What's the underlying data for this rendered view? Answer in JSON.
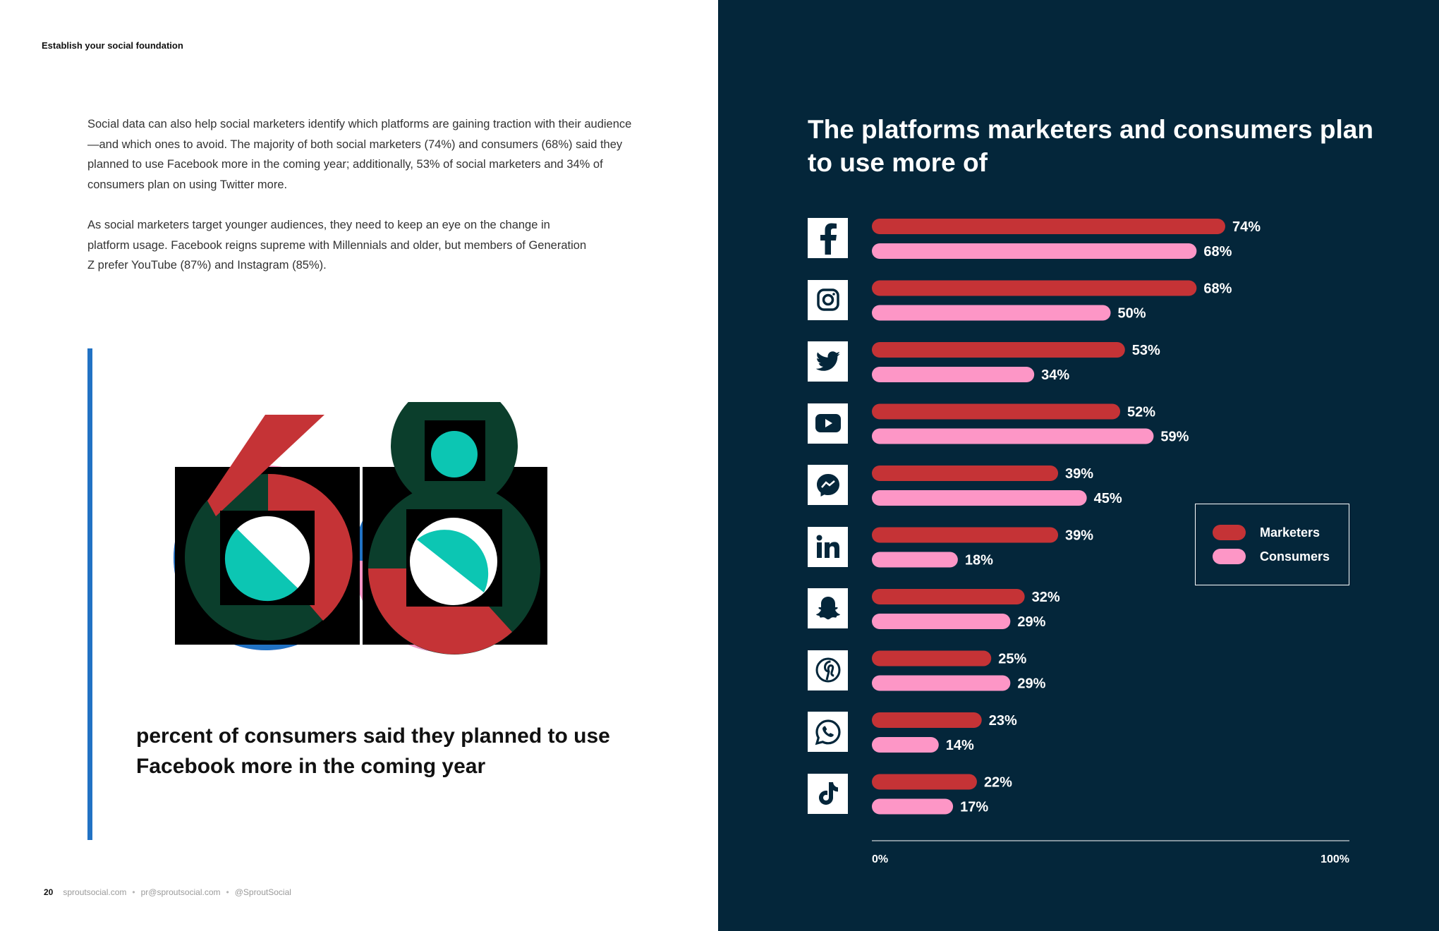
{
  "header": {
    "section_label": "Establish your social foundation"
  },
  "body": {
    "paragraph_1": "Social data can also help social marketers identify which platforms are gaining traction with their audience—and which ones to avoid. The majority of both social marketers (74%) and consumers (68%) said they planned to use Facebook more in the coming year; additionally, 53% of social marketers and 34% of consumers plan on using Twitter more.",
    "paragraph_2": "As social marketers target younger audiences, they need to keep an eye on the change in platform usage. Facebook reigns supreme with Millennials and older, but members of Generation Z prefer YouTube (87%) and Instagram (85%)."
  },
  "stat": {
    "value": "68",
    "caption": "percent of consumers said they planned to use Facebook more in the coming year"
  },
  "footer": {
    "page_number": "20",
    "website": "sproutsocial.com",
    "email": "pr@sproutsocial.com",
    "handle": "@SproutSocial"
  },
  "colors": {
    "navy": "#04263a",
    "marketers": "#c53336",
    "consumers": "#fd96c6",
    "teal": "#0cc6b3",
    "blue": "#2172c4",
    "dark_green": "#0b3e2c"
  },
  "chart_data": {
    "type": "bar",
    "orientation": "horizontal",
    "title": "The platforms marketers and consumers plan to use more of",
    "categories": [
      "Facebook",
      "Instagram",
      "Twitter",
      "YouTube",
      "Messenger",
      "LinkedIn",
      "Snapchat",
      "Pinterest",
      "WhatsApp",
      "TikTok"
    ],
    "category_icons": [
      "facebook-icon",
      "instagram-icon",
      "twitter-icon",
      "youtube-icon",
      "messenger-icon",
      "linkedin-icon",
      "snapchat-icon",
      "pinterest-icon",
      "whatsapp-icon",
      "tiktok-icon"
    ],
    "series": [
      {
        "name": "Marketers",
        "values": [
          74,
          68,
          53,
          52,
          39,
          39,
          32,
          25,
          23,
          22
        ]
      },
      {
        "name": "Consumers",
        "values": [
          68,
          50,
          34,
          59,
          45,
          18,
          29,
          29,
          14,
          17
        ]
      }
    ],
    "value_labels": {
      "Marketers": [
        "74%",
        "68%",
        "53%",
        "52%",
        "39%",
        "39%",
        "32%",
        "25%",
        "23%",
        "22%"
      ],
      "Consumers": [
        "68%",
        "50%",
        "34%",
        "59%",
        "45%",
        "18%",
        "29%",
        "29%",
        "14%",
        "17%"
      ]
    },
    "xlim": [
      0,
      100
    ],
    "axis_labels": {
      "min": "0%",
      "max": "100%"
    },
    "legend": {
      "position": "right",
      "entries": [
        "Marketers",
        "Consumers"
      ]
    },
    "grid": false
  }
}
